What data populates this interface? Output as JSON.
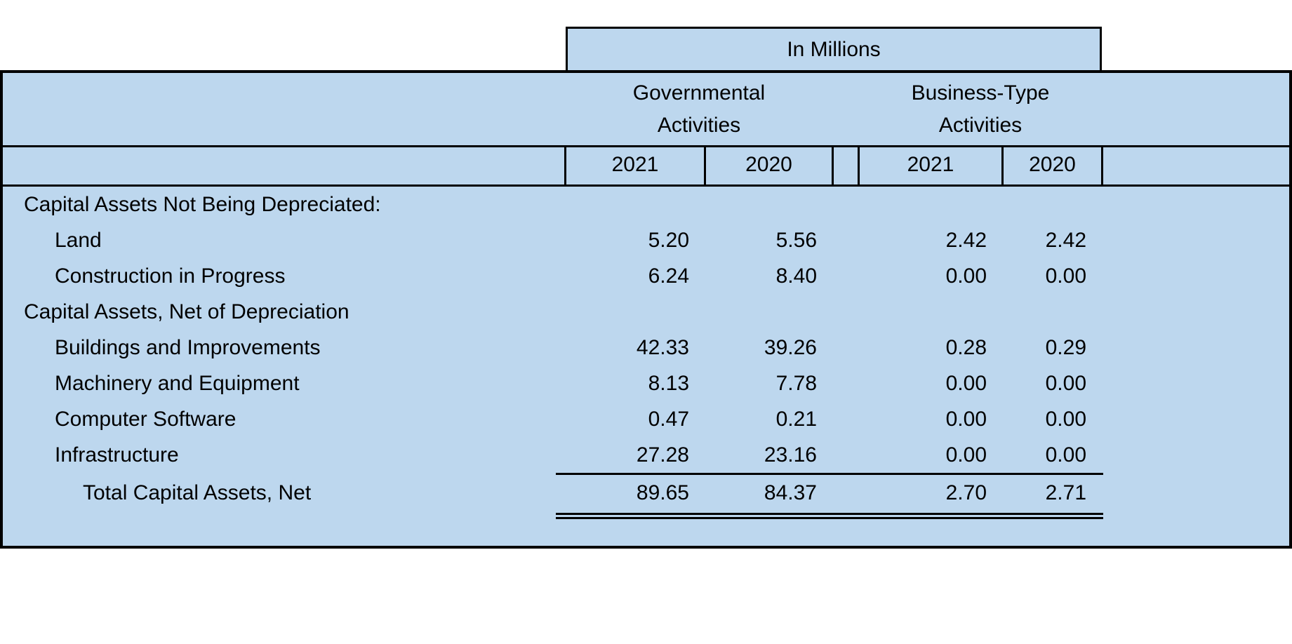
{
  "colors": {
    "table_bg": "#BDD7EE",
    "border": "#000000",
    "text": "#000000",
    "page_bg": "#FFFFFF"
  },
  "chart_data": {
    "type": "table",
    "unit_header": "In Millions",
    "column_groups": [
      {
        "line1": "Governmental",
        "line2": "Activities",
        "years": [
          "2021",
          "2020"
        ]
      },
      {
        "line1": "Business-Type",
        "line2": "Activities",
        "years": [
          "2021",
          "2020"
        ]
      }
    ],
    "columns": [
      "Governmental Activities 2021",
      "Governmental Activities 2020",
      "Business-Type Activities 2021",
      "Business-Type Activities 2020"
    ],
    "rows": [
      {
        "label": "Capital Assets Not Being Depreciated:",
        "indent": 0,
        "section": true,
        "values": [
          "",
          "",
          "",
          ""
        ]
      },
      {
        "label": "Land",
        "indent": 1,
        "section": false,
        "values": [
          "5.20",
          "5.56",
          "2.42",
          "2.42"
        ]
      },
      {
        "label": "Construction in Progress",
        "indent": 1,
        "section": false,
        "values": [
          "6.24",
          "8.40",
          "0.00",
          "0.00"
        ]
      },
      {
        "label": "Capital Assets, Net of Depreciation",
        "indent": 0,
        "section": true,
        "values": [
          "",
          "",
          "",
          ""
        ]
      },
      {
        "label": "Buildings and Improvements",
        "indent": 1,
        "section": false,
        "values": [
          "42.33",
          "39.26",
          "0.28",
          "0.29"
        ]
      },
      {
        "label": "Machinery and Equipment",
        "indent": 1,
        "section": false,
        "values": [
          "8.13",
          "7.78",
          "0.00",
          "0.00"
        ]
      },
      {
        "label": "Computer Software",
        "indent": 1,
        "section": false,
        "values": [
          "0.47",
          "0.21",
          "0.00",
          "0.00"
        ]
      },
      {
        "label": "Infrastructure",
        "indent": 1,
        "section": false,
        "values": [
          "27.28",
          "23.16",
          "0.00",
          "0.00"
        ]
      },
      {
        "label": "Total Capital Assets, Net",
        "indent": 2,
        "section": false,
        "total": true,
        "values": [
          "89.65",
          "84.37",
          "2.70",
          "2.71"
        ]
      }
    ]
  }
}
